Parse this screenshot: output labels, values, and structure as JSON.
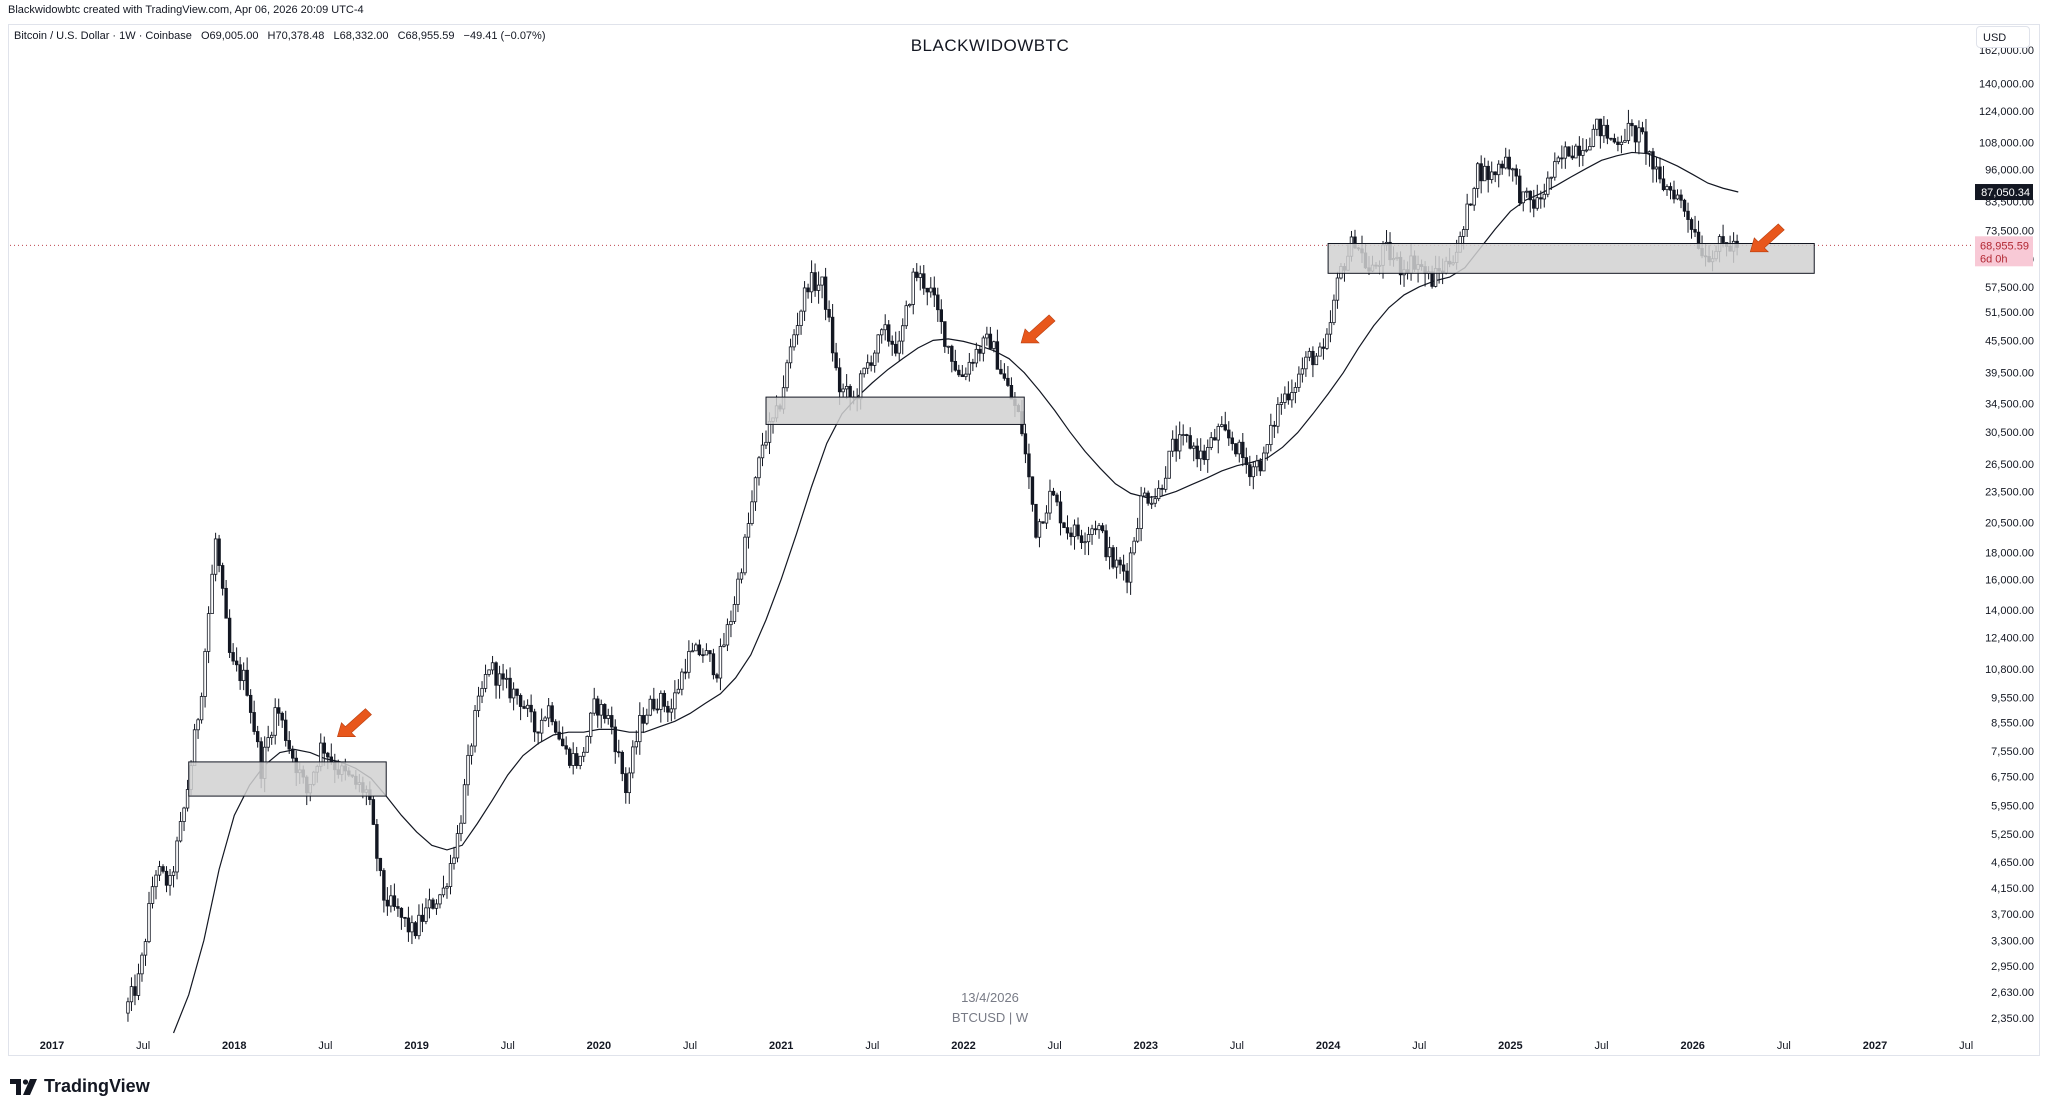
{
  "header": {
    "created_by": "Blackwidowbtc created with TradingView.com, Apr 06, 2026 20:09 UTC-4"
  },
  "symbol_info": {
    "name": "Bitcoin / U.S. Dollar · 1W · Coinbase",
    "open": "O69,005.00",
    "high": "H70,378.48",
    "low": "L68,332.00",
    "close": "C68,955.59",
    "change": "−49.41 (−0.07%)"
  },
  "title": "BLACKWIDOWBTC",
  "currency_button": "USD",
  "watermark": {
    "date": "13/4/2026",
    "symbol": "BTCUSD | W"
  },
  "brand": {
    "name": "TradingView"
  },
  "colors": {
    "candle": "#131722",
    "box_fill": "#d1d1d1",
    "box_stroke": "#131722",
    "arrow": "#e8571c",
    "ma_line": "#131722",
    "price_tag_bg": "#131722",
    "last_price_bg": "#f8c9d6",
    "last_price_text": "#b22833"
  },
  "chart_data": {
    "type": "candlestick",
    "scale": "log",
    "interval": "1W",
    "ylim": [
      2200,
      162000
    ],
    "price_axis_ticks": [
      "162,000.00",
      "140,000.00",
      "124,000.00",
      "108,000.00",
      "96,000.00",
      "83,500.00",
      "73,500.00",
      "65,000.00",
      "57,500.00",
      "51,500.00",
      "45,500.00",
      "39,500.00",
      "34,500.00",
      "30,500.00",
      "26,500.00",
      "23,500.00",
      "20,500.00",
      "18,000.00",
      "16,000.00",
      "14,000.00",
      "12,400.00",
      "10,800.00",
      "9,550.00",
      "8,550.00",
      "7,550.00",
      "6,750.00",
      "5,950.00",
      "5,250.00",
      "4,650.00",
      "4,150.00",
      "3,700.00",
      "3,300.00",
      "2,950.00",
      "2,630.00",
      "2,350.00"
    ],
    "price_tags": {
      "ma_value": "87,050.34",
      "last_price": "68,955.59",
      "countdown": "6d 0h"
    },
    "time_axis_ticks": [
      {
        "label": "2017",
        "year": true
      },
      {
        "label": "Jul",
        "year": false
      },
      {
        "label": "2018",
        "year": true
      },
      {
        "label": "Jul",
        "year": false
      },
      {
        "label": "2019",
        "year": true
      },
      {
        "label": "Jul",
        "year": false
      },
      {
        "label": "2020",
        "year": true
      },
      {
        "label": "Jul",
        "year": false
      },
      {
        "label": "2021",
        "year": true
      },
      {
        "label": "Jul",
        "year": false
      },
      {
        "label": "2022",
        "year": true
      },
      {
        "label": "Jul",
        "year": false
      },
      {
        "label": "2023",
        "year": true
      },
      {
        "label": "Jul",
        "year": false
      },
      {
        "label": "2024",
        "year": true
      },
      {
        "label": "Jul",
        "year": false
      },
      {
        "label": "2025",
        "year": true
      },
      {
        "label": "Jul",
        "year": false
      },
      {
        "label": "2026",
        "year": true
      },
      {
        "label": "Jul",
        "year": false
      },
      {
        "label": "2027",
        "year": true
      },
      {
        "label": "Jul",
        "year": false
      }
    ],
    "price_path": [
      [
        "2017-06",
        2400
      ],
      [
        "2017-07",
        2800
      ],
      [
        "2017-08",
        4500
      ],
      [
        "2017-09",
        4200
      ],
      [
        "2017-10",
        6000
      ],
      [
        "2017-11",
        9500
      ],
      [
        "2017-12",
        19000
      ],
      [
        "2018-01",
        11000
      ],
      [
        "2018-02",
        10300
      ],
      [
        "2018-03",
        7000
      ],
      [
        "2018-04",
        9200
      ],
      [
        "2018-05",
        7500
      ],
      [
        "2018-06",
        6300
      ],
      [
        "2018-07",
        7800
      ],
      [
        "2018-08",
        7000
      ],
      [
        "2018-09",
        6600
      ],
      [
        "2018-10",
        6300
      ],
      [
        "2018-11",
        4000
      ],
      [
        "2018-12",
        3700
      ],
      [
        "2019-01",
        3400
      ],
      [
        "2019-02",
        3800
      ],
      [
        "2019-03",
        4100
      ],
      [
        "2019-04",
        5300
      ],
      [
        "2019-05",
        8500
      ],
      [
        "2019-06",
        11000
      ],
      [
        "2019-07",
        10000
      ],
      [
        "2019-08",
        9600
      ],
      [
        "2019-09",
        8300
      ],
      [
        "2019-10",
        9200
      ],
      [
        "2019-11",
        7500
      ],
      [
        "2019-12",
        7200
      ],
      [
        "2020-01",
        9300
      ],
      [
        "2020-02",
        8600
      ],
      [
        "2020-03",
        6400
      ],
      [
        "2020-04",
        8700
      ],
      [
        "2020-05",
        9500
      ],
      [
        "2020-06",
        9100
      ],
      [
        "2020-07",
        11300
      ],
      [
        "2020-08",
        11700
      ],
      [
        "2020-09",
        10800
      ],
      [
        "2020-10",
        13800
      ],
      [
        "2020-11",
        19700
      ],
      [
        "2020-12",
        29000
      ],
      [
        "2021-01",
        33000
      ],
      [
        "2021-02",
        46000
      ],
      [
        "2021-03",
        58800
      ],
      [
        "2021-04",
        57700
      ],
      [
        "2021-05",
        37000
      ],
      [
        "2021-06",
        35000
      ],
      [
        "2021-07",
        41500
      ],
      [
        "2021-08",
        47100
      ],
      [
        "2021-09",
        43800
      ],
      [
        "2021-10",
        61300
      ],
      [
        "2021-11",
        57000
      ],
      [
        "2021-12",
        46300
      ],
      [
        "2022-01",
        38500
      ],
      [
        "2022-02",
        43200
      ],
      [
        "2022-03",
        45500
      ],
      [
        "2022-04",
        37700
      ],
      [
        "2022-05",
        31800
      ],
      [
        "2022-06",
        19900
      ],
      [
        "2022-07",
        23300
      ],
      [
        "2022-08",
        20000
      ],
      [
        "2022-09",
        19400
      ],
      [
        "2022-10",
        20500
      ],
      [
        "2022-11",
        17200
      ],
      [
        "2022-12",
        16500
      ],
      [
        "2023-01",
        23100
      ],
      [
        "2023-02",
        23100
      ],
      [
        "2023-03",
        28500
      ],
      [
        "2023-04",
        29300
      ],
      [
        "2023-05",
        27200
      ],
      [
        "2023-06",
        30500
      ],
      [
        "2023-07",
        29200
      ],
      [
        "2023-08",
        26000
      ],
      [
        "2023-09",
        27000
      ],
      [
        "2023-10",
        34500
      ],
      [
        "2023-11",
        37700
      ],
      [
        "2023-12",
        42300
      ],
      [
        "2024-01",
        42600
      ],
      [
        "2024-02",
        61200
      ],
      [
        "2024-03",
        71300
      ],
      [
        "2024-04",
        60600
      ],
      [
        "2024-05",
        67500
      ],
      [
        "2024-06",
        62700
      ],
      [
        "2024-07",
        64600
      ],
      [
        "2024-08",
        59000
      ],
      [
        "2024-09",
        63300
      ],
      [
        "2024-10",
        70200
      ],
      [
        "2024-11",
        96400
      ],
      [
        "2024-12",
        93400
      ],
      [
        "2025-01",
        102400
      ],
      [
        "2025-02",
        84300
      ],
      [
        "2025-03",
        82500
      ],
      [
        "2025-04",
        94200
      ],
      [
        "2025-05",
        104600
      ],
      [
        "2025-06",
        107100
      ],
      [
        "2025-07",
        115700
      ],
      [
        "2025-08",
        108200
      ],
      [
        "2025-09",
        114000
      ],
      [
        "2025-10",
        109600
      ],
      [
        "2025-11",
        90400
      ],
      [
        "2025-12",
        87500
      ],
      [
        "2026-01",
        78000
      ],
      [
        "2026-02",
        66000
      ],
      [
        "2026-03",
        68500
      ],
      [
        "2026-04",
        68955
      ]
    ],
    "moving_average": [
      [
        "2017-09",
        2200
      ],
      [
        "2017-10",
        2600
      ],
      [
        "2017-11",
        3300
      ],
      [
        "2017-12",
        4500
      ],
      [
        "2018-01",
        5700
      ],
      [
        "2018-02",
        6500
      ],
      [
        "2018-03",
        7100
      ],
      [
        "2018-04",
        7500
      ],
      [
        "2018-05",
        7600
      ],
      [
        "2018-06",
        7500
      ],
      [
        "2018-07",
        7300
      ],
      [
        "2018-08",
        7200
      ],
      [
        "2018-09",
        7000
      ],
      [
        "2018-10",
        6700
      ],
      [
        "2018-11",
        6200
      ],
      [
        "2018-12",
        5700
      ],
      [
        "2019-01",
        5300
      ],
      [
        "2019-02",
        5000
      ],
      [
        "2019-03",
        4900
      ],
      [
        "2019-04",
        5000
      ],
      [
        "2019-05",
        5500
      ],
      [
        "2019-06",
        6100
      ],
      [
        "2019-07",
        6800
      ],
      [
        "2019-08",
        7400
      ],
      [
        "2019-09",
        7800
      ],
      [
        "2019-10",
        8100
      ],
      [
        "2019-11",
        8200
      ],
      [
        "2019-12",
        8200
      ],
      [
        "2020-01",
        8300
      ],
      [
        "2020-02",
        8300
      ],
      [
        "2020-03",
        8200
      ],
      [
        "2020-04",
        8200
      ],
      [
        "2020-05",
        8400
      ],
      [
        "2020-06",
        8600
      ],
      [
        "2020-07",
        8900
      ],
      [
        "2020-08",
        9300
      ],
      [
        "2020-09",
        9700
      ],
      [
        "2020-10",
        10400
      ],
      [
        "2020-11",
        11500
      ],
      [
        "2020-12",
        13400
      ],
      [
        "2021-01",
        16000
      ],
      [
        "2021-02",
        19500
      ],
      [
        "2021-03",
        24000
      ],
      [
        "2021-04",
        29000
      ],
      [
        "2021-05",
        33000
      ],
      [
        "2021-06",
        35500
      ],
      [
        "2021-07",
        37800
      ],
      [
        "2021-08",
        40000
      ],
      [
        "2021-09",
        42000
      ],
      [
        "2021-10",
        44000
      ],
      [
        "2021-11",
        45500
      ],
      [
        "2021-12",
        45800
      ],
      [
        "2022-01",
        45300
      ],
      [
        "2022-02",
        44500
      ],
      [
        "2022-03",
        43500
      ],
      [
        "2022-04",
        42000
      ],
      [
        "2022-05",
        39500
      ],
      [
        "2022-06",
        36500
      ],
      [
        "2022-07",
        33500
      ],
      [
        "2022-08",
        30500
      ],
      [
        "2022-09",
        28000
      ],
      [
        "2022-10",
        26000
      ],
      [
        "2022-11",
        24300
      ],
      [
        "2022-12",
        23300
      ],
      [
        "2023-01",
        22900
      ],
      [
        "2023-02",
        23000
      ],
      [
        "2023-03",
        23500
      ],
      [
        "2023-04",
        24200
      ],
      [
        "2023-05",
        24900
      ],
      [
        "2023-06",
        25700
      ],
      [
        "2023-07",
        26300
      ],
      [
        "2023-08",
        26700
      ],
      [
        "2023-09",
        27200
      ],
      [
        "2023-10",
        28500
      ],
      [
        "2023-11",
        30400
      ],
      [
        "2023-12",
        33000
      ],
      [
        "2024-01",
        36000
      ],
      [
        "2024-02",
        39500
      ],
      [
        "2024-03",
        44000
      ],
      [
        "2024-04",
        48500
      ],
      [
        "2024-05",
        52500
      ],
      [
        "2024-06",
        55500
      ],
      [
        "2024-07",
        57500
      ],
      [
        "2024-08",
        59000
      ],
      [
        "2024-09",
        60000
      ],
      [
        "2024-10",
        62500
      ],
      [
        "2024-11",
        68000
      ],
      [
        "2024-12",
        74000
      ],
      [
        "2025-01",
        80000
      ],
      [
        "2025-02",
        84000
      ],
      [
        "2025-03",
        86500
      ],
      [
        "2025-04",
        89500
      ],
      [
        "2025-05",
        93000
      ],
      [
        "2025-06",
        96500
      ],
      [
        "2025-07",
        100000
      ],
      [
        "2025-08",
        102000
      ],
      [
        "2025-09",
        103500
      ],
      [
        "2025-10",
        103000
      ],
      [
        "2025-11",
        100500
      ],
      [
        "2025-12",
        97500
      ],
      [
        "2026-01",
        94000
      ],
      [
        "2026-02",
        90500
      ],
      [
        "2026-03",
        88500
      ],
      [
        "2026-04",
        87050
      ]
    ],
    "zones": [
      {
        "from": "2017-10",
        "to": "2018-11",
        "low": 6200,
        "high": 7200
      },
      {
        "from": "2020-12",
        "to": "2022-05",
        "low": 31500,
        "high": 35500
      },
      {
        "from": "2024-01",
        "to": "2026-09",
        "low": 61000,
        "high": 69500
      }
    ],
    "arrows": [
      {
        "date": "2018-07",
        "price": 8400
      },
      {
        "date": "2022-04",
        "price": 47000
      },
      {
        "date": "2026-04",
        "price": 70000
      }
    ],
    "last_price_line": 68955.59
  }
}
